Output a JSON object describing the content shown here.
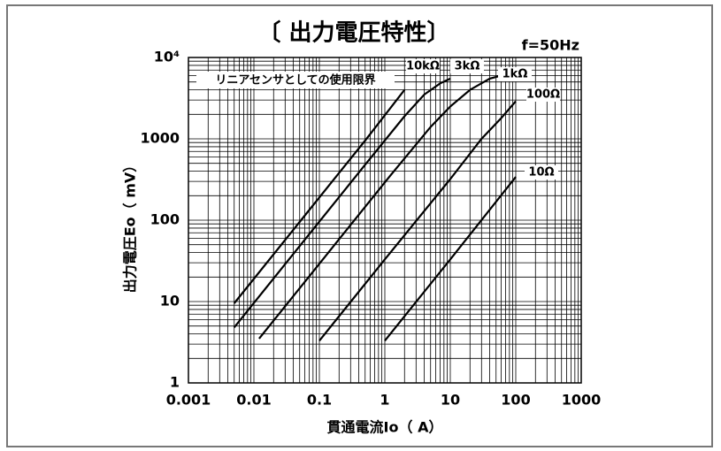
{
  "chart_data": {
    "type": "line",
    "title": "〔 出力電圧特性〕",
    "subtitle": "f=50Hz",
    "x_label": "貫通電流Io（ A）",
    "y_label": "出力電圧Eo（ mV）",
    "annotation": "リニアセンサとしての使用限界",
    "log_x": true,
    "log_y": true,
    "grid": true,
    "minor_grid": true,
    "xlim": [
      0.001,
      1000
    ],
    "ylim": [
      1,
      10000
    ],
    "xticks": [
      0.001,
      0.01,
      0.1,
      1,
      10,
      100,
      1000
    ],
    "yticks": [
      1,
      10,
      100,
      1000,
      {
        "value": 10000,
        "label": "10⁴"
      }
    ],
    "series": [
      {
        "name": "10kΩ",
        "color": "#000000",
        "x": [
          0.005,
          0.05,
          0.5,
          2
        ],
        "values": [
          9.5,
          95,
          950,
          4000
        ]
      },
      {
        "name": "3kΩ",
        "color": "#000000",
        "x": [
          0.005,
          0.05,
          0.5,
          2,
          4,
          7,
          10
        ],
        "values": [
          4.8,
          48,
          480,
          1900,
          3500,
          4800,
          5500
        ]
      },
      {
        "name": "1kΩ",
        "color": "#000000",
        "x": [
          0.012,
          0.12,
          1.2,
          5,
          10,
          20,
          40,
          60
        ],
        "values": [
          3.5,
          35,
          350,
          1400,
          2500,
          4000,
          5500,
          6000
        ]
      },
      {
        "name": "100Ω",
        "color": "#000000",
        "x": [
          0.1,
          1,
          10,
          30,
          60,
          100
        ],
        "values": [
          3.3,
          33,
          320,
          1000,
          1800,
          2900
        ]
      },
      {
        "name": "10Ω",
        "color": "#000000",
        "x": [
          1,
          10,
          100
        ],
        "values": [
          3.3,
          33,
          340
        ]
      }
    ]
  }
}
